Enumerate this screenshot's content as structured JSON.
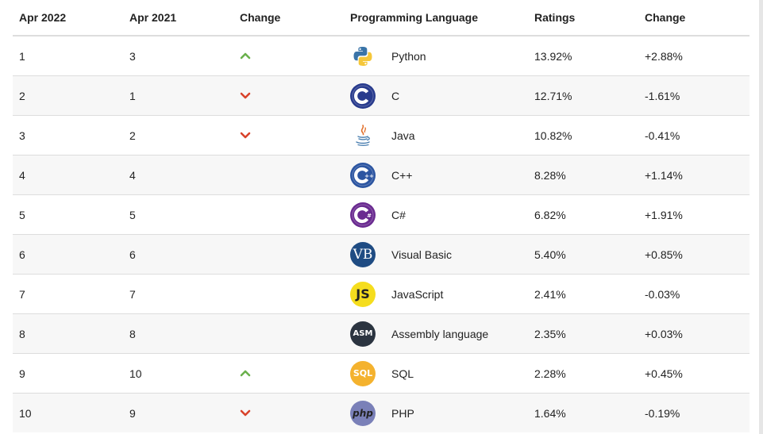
{
  "headers": {
    "apr2022": "Apr 2022",
    "apr2021": "Apr 2021",
    "change": "Change",
    "language": "Programming Language",
    "ratings": "Ratings",
    "change2": "Change"
  },
  "colors": {
    "up": "#6ab04c",
    "down": "#d8432b"
  },
  "rows": [
    {
      "rank2022": "1",
      "rank2021": "3",
      "trend": "up",
      "language": "Python",
      "logo": "python-logo",
      "ratings": "13.92%",
      "change": "+2.88%"
    },
    {
      "rank2022": "2",
      "rank2021": "1",
      "trend": "down",
      "language": "C",
      "logo": "c-logo",
      "ratings": "12.71%",
      "change": "-1.61%"
    },
    {
      "rank2022": "3",
      "rank2021": "2",
      "trend": "down",
      "language": "Java",
      "logo": "java-logo",
      "ratings": "10.82%",
      "change": "-0.41%"
    },
    {
      "rank2022": "4",
      "rank2021": "4",
      "trend": "none",
      "language": "C++",
      "logo": "cpp-logo",
      "ratings": "8.28%",
      "change": "+1.14%"
    },
    {
      "rank2022": "5",
      "rank2021": "5",
      "trend": "none",
      "language": "C#",
      "logo": "csharp-logo",
      "ratings": "6.82%",
      "change": "+1.91%"
    },
    {
      "rank2022": "6",
      "rank2021": "6",
      "trend": "none",
      "language": "Visual Basic",
      "logo": "vb-logo",
      "logo_text": "VB",
      "ratings": "5.40%",
      "change": "+0.85%"
    },
    {
      "rank2022": "7",
      "rank2021": "7",
      "trend": "none",
      "language": "JavaScript",
      "logo": "js-logo",
      "logo_text": "JS",
      "ratings": "2.41%",
      "change": "-0.03%"
    },
    {
      "rank2022": "8",
      "rank2021": "8",
      "trend": "none",
      "language": "Assembly language",
      "logo": "asm-logo",
      "logo_text": "ASM",
      "ratings": "2.35%",
      "change": "+0.03%"
    },
    {
      "rank2022": "9",
      "rank2021": "10",
      "trend": "up",
      "language": "SQL",
      "logo": "sql-logo",
      "logo_text": "SQL",
      "ratings": "2.28%",
      "change": "+0.45%"
    },
    {
      "rank2022": "10",
      "rank2021": "9",
      "trend": "down",
      "language": "PHP",
      "logo": "php-logo",
      "logo_text": "php",
      "ratings": "1.64%",
      "change": "-0.19%"
    }
  ]
}
